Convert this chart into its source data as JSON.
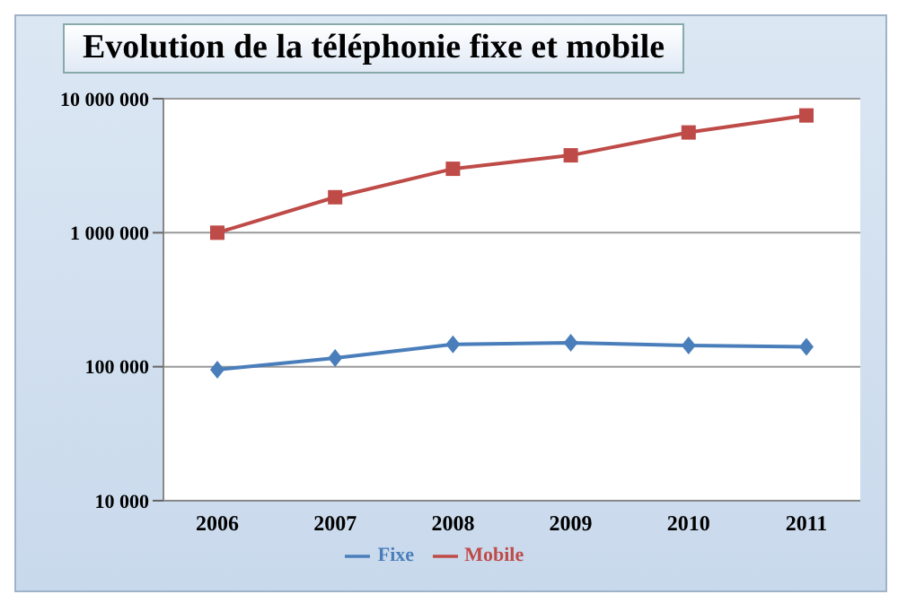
{
  "chart_data": {
    "type": "line",
    "title": "Evolution de la téléphonie fixe et mobile",
    "categories": [
      "2006",
      "2007",
      "2008",
      "2009",
      "2010",
      "2011"
    ],
    "series": [
      {
        "name": "Fixe",
        "color": "#4a7ebb",
        "marker": "diamond",
        "values": [
          95000,
          116000,
          147000,
          151000,
          144000,
          141000
        ]
      },
      {
        "name": "Mobile",
        "color": "#be4b48",
        "marker": "square",
        "values": [
          1000000,
          1840000,
          3000000,
          3780000,
          5600000,
          7500000
        ]
      }
    ],
    "log": "y",
    "ylim": [
      10000,
      10000000
    ],
    "yticks": [
      {
        "value": 10000,
        "label": "10 000"
      },
      {
        "value": 100000,
        "label": "100 000"
      },
      {
        "value": 1000000,
        "label": "1 000 000"
      },
      {
        "value": 10000000,
        "label": "10 000 000"
      }
    ],
    "grid": "y",
    "legend": "bottom"
  }
}
